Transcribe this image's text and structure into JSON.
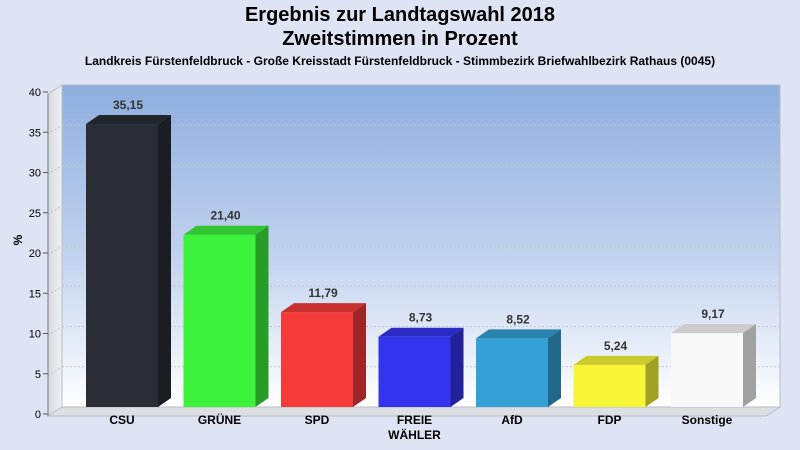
{
  "title": "Ergebnis zur Landtagswahl 2018",
  "subtitle": "Zweitstimmen in Prozent",
  "caption": "Landkreis Fürstenfeldbruck - Große Kreisstadt Fürstenfeldbruck - Stimmbezirk Briefwahlbezirk Rathaus (0045)",
  "chart_data": {
    "type": "bar",
    "ylabel": "%",
    "ylim": [
      0,
      40
    ],
    "yticks": [
      0,
      5,
      10,
      15,
      20,
      25,
      30,
      35,
      40
    ],
    "categories": [
      "CSU",
      "GRÜNE",
      "SPD",
      "FREIE WÄHLER",
      "AfD",
      "FDP",
      "Sonstige"
    ],
    "category_lines": [
      [
        "CSU"
      ],
      [
        "GRÜNE"
      ],
      [
        "SPD"
      ],
      [
        "FREIE",
        "WÄHLER"
      ],
      [
        "AfD"
      ],
      [
        "FDP"
      ],
      [
        "Sonstige"
      ]
    ],
    "values": [
      35.15,
      21.4,
      11.79,
      8.73,
      8.52,
      5.24,
      9.17
    ],
    "value_labels": [
      "35,15",
      "21,40",
      "11,79",
      "8,73",
      "8,52",
      "5,24",
      "9,17"
    ],
    "colors": [
      "#2a2d36",
      "#3cf23c",
      "#f53a3a",
      "#3434ee",
      "#35a0d6",
      "#f6f636",
      "#f8f8f8"
    ],
    "grid": true
  }
}
